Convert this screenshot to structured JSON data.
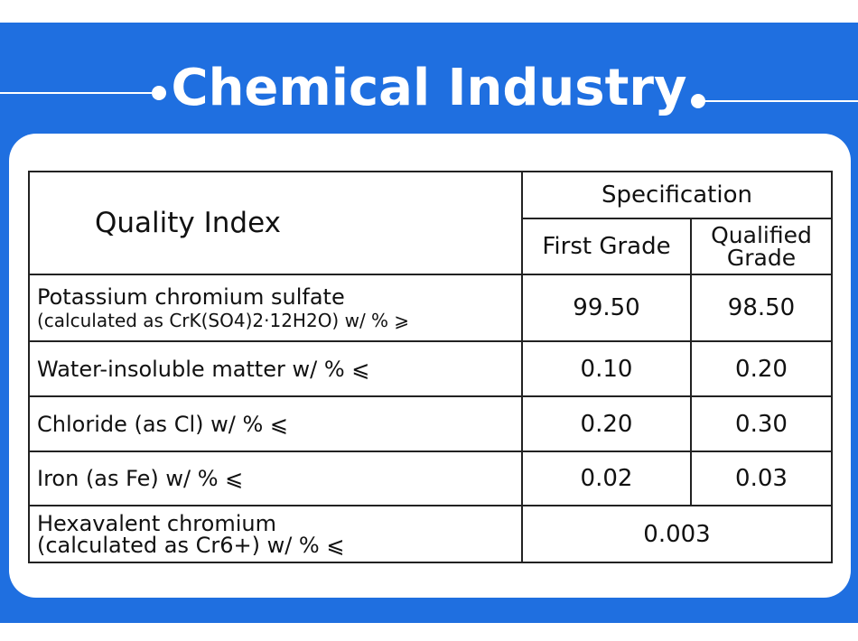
{
  "page": {
    "title": "Chemical Industry"
  },
  "table": {
    "quality_index_header": "Quality Index",
    "specification_header": "Specification",
    "first_grade_header": "First Grade",
    "qualified_grade_header_line1": "Qualified",
    "qualified_grade_header_line2": "Grade",
    "rows": [
      {
        "label_line1": "Potassium chromium sulfate",
        "label_line2": "(calculated as CrK(SO4)2·12H2O) w/ % ⩾",
        "first_grade": "99.50",
        "qualified_grade": "98.50"
      },
      {
        "label": "Water-insoluble matter w/ % ⩽",
        "first_grade": "0.10",
        "qualified_grade": "0.20"
      },
      {
        "label": "Chloride (as Cl) w/ % ⩽",
        "first_grade": "0.20",
        "qualified_grade": "0.30"
      },
      {
        "label": "Iron (as Fe) w/ % ⩽",
        "first_grade": "0.02",
        "qualified_grade": "0.03"
      },
      {
        "label_line1": "Hexavalent chromium",
        "label_line2": "(calculated as Cr6+) w/ % ⩽",
        "value": "0.003"
      }
    ]
  },
  "colors": {
    "background": "#1f6fe0",
    "card": "#ffffff",
    "text": "#111111"
  }
}
